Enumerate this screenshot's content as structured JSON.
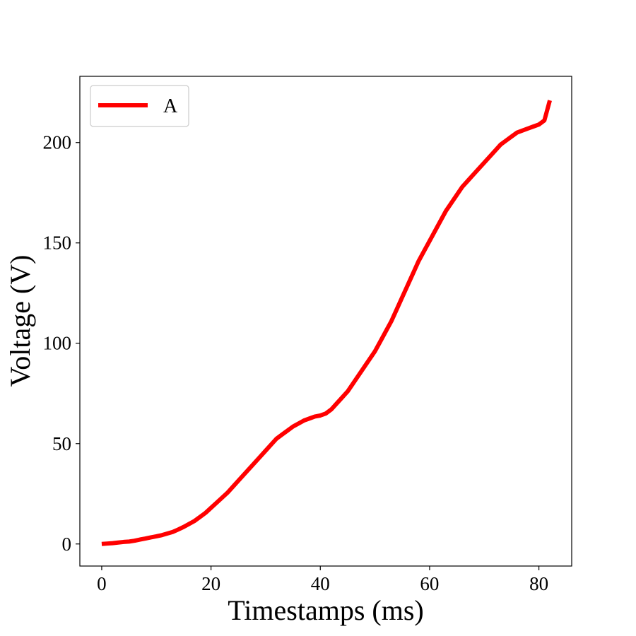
{
  "chart_data": {
    "type": "line",
    "title": "",
    "xlabel": "Timestamps (ms)",
    "ylabel": "Voltage (V)",
    "xlim": [
      -4,
      86
    ],
    "ylim": [
      -11,
      233
    ],
    "xticks": [
      0,
      20,
      40,
      60,
      80
    ],
    "yticks": [
      0,
      50,
      100,
      150,
      200
    ],
    "grid": false,
    "legend_position": "top-left",
    "series": [
      {
        "name": "A",
        "color": "#ff0000",
        "x": [
          0,
          1,
          2,
          3,
          4,
          5,
          6,
          7,
          8,
          9,
          10,
          11,
          12,
          13,
          14,
          15,
          16,
          17,
          18,
          19,
          20,
          21,
          22,
          23,
          24,
          25,
          26,
          27,
          28,
          29,
          30,
          31,
          32,
          33,
          34,
          35,
          36,
          37,
          38,
          39,
          40,
          41,
          42,
          43,
          44,
          45,
          46,
          47,
          48,
          49,
          50,
          51,
          52,
          53,
          54,
          55,
          56,
          57,
          58,
          59,
          60,
          61,
          62,
          63,
          64,
          65,
          66,
          67,
          68,
          69,
          70,
          71,
          72,
          73,
          74,
          75,
          76,
          77,
          78,
          79,
          80,
          81,
          82
        ],
        "y": [
          0,
          0.2,
          0.4,
          0.7,
          1,
          1.2,
          1.6,
          2.2,
          2.7,
          3.3,
          3.8,
          4.4,
          5.2,
          6,
          7.2,
          8.5,
          10,
          11.5,
          13.5,
          15.5,
          18,
          20.5,
          23,
          25.5,
          28.5,
          31.5,
          34.5,
          37.5,
          40.5,
          43.5,
          46.5,
          49.5,
          52.5,
          54.5,
          56.5,
          58.5,
          60,
          61.5,
          62.5,
          63.5,
          64,
          65,
          67,
          70,
          73,
          76,
          80,
          84,
          88,
          92,
          96,
          101,
          106,
          111,
          117,
          123,
          129,
          135,
          141,
          146,
          151,
          156,
          161,
          166,
          170,
          174,
          178,
          181,
          184,
          187,
          190,
          193,
          196,
          199,
          201,
          203,
          205,
          206,
          207,
          208,
          209,
          211,
          221
        ]
      }
    ]
  }
}
